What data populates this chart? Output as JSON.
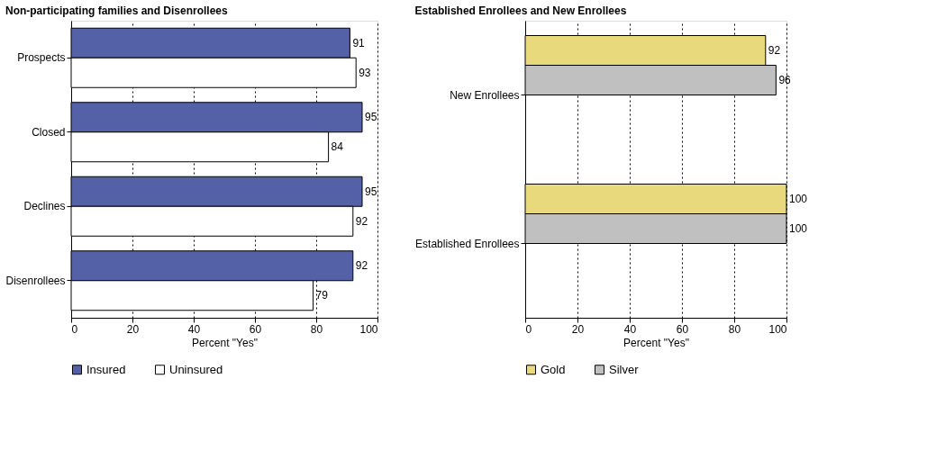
{
  "chart_data": [
    {
      "type": "bar",
      "orientation": "horizontal",
      "title": "Non-participating families and Disenrollees",
      "xlabel": "Percent \"Yes\"",
      "categories": [
        "Prospects",
        "Closed",
        "Declines",
        "Disenrollees"
      ],
      "series": [
        {
          "name": "Insured",
          "color": "#5561a6",
          "values": [
            91,
            95,
            95,
            92
          ]
        },
        {
          "name": "Uninsured",
          "color": "#ffffff",
          "values": [
            93,
            84,
            92,
            79
          ]
        }
      ],
      "xlim": [
        0,
        100
      ],
      "xticks": [
        0,
        20,
        40,
        60,
        80,
        100
      ],
      "grid": "x",
      "legend": "bottom",
      "data_labels": true
    },
    {
      "type": "bar",
      "orientation": "horizontal",
      "title": "Established Enrollees and New Enrollees",
      "xlabel": "Percent \"Yes\"",
      "categories": [
        "New Enrollees",
        "Established Enrollees"
      ],
      "series": [
        {
          "name": "Gold",
          "color": "#e8d97c",
          "values": [
            92,
            100
          ]
        },
        {
          "name": "Silver",
          "color": "#c0c0c0",
          "values": [
            96,
            100
          ]
        }
      ],
      "xlim": [
        0,
        100
      ],
      "xticks": [
        0,
        20,
        40,
        60,
        80,
        100
      ],
      "grid": "x",
      "legend": "bottom",
      "data_labels": true
    }
  ]
}
